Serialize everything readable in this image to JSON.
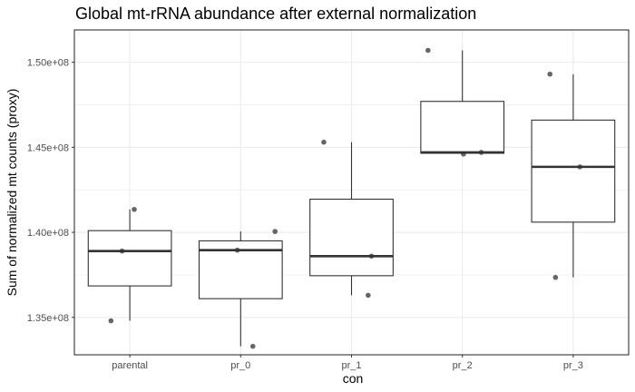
{
  "chart_data": {
    "type": "box",
    "title": "Global mt-rRNA abundance after external normalization",
    "xlabel": "con",
    "ylabel": "Sum of normalized mt counts (proxy)",
    "categories": [
      "parental",
      "pr_0",
      "pr_1",
      "pr_2",
      "pr_3"
    ],
    "ylim": [
      132800000,
      151900000
    ],
    "yticks": [
      135000000,
      140000000,
      145000000,
      150000000
    ],
    "ytick_labels": [
      "1.35e+08",
      "1.40e+08",
      "1.45e+08",
      "1.50e+08"
    ],
    "grid": true,
    "boxes": [
      {
        "category": "parental",
        "lower_whisker": 134800000,
        "q1": 136850000,
        "median": 138900000,
        "q3": 140100000,
        "upper_whisker": 141350000
      },
      {
        "category": "pr_0",
        "lower_whisker": 133300000,
        "q1": 136100000,
        "median": 138950000,
        "q3": 139500000,
        "upper_whisker": 140050000
      },
      {
        "category": "pr_1",
        "lower_whisker": 136300000,
        "q1": 137450000,
        "median": 138600000,
        "q3": 141950000,
        "upper_whisker": 145300000
      },
      {
        "category": "pr_2",
        "lower_whisker": 144600000,
        "q1": 144650000,
        "median": 144700000,
        "q3": 147700000,
        "upper_whisker": 150700000
      },
      {
        "category": "pr_3",
        "lower_whisker": 137350000,
        "q1": 140600000,
        "median": 143850000,
        "q3": 146600000,
        "upper_whisker": 149300000
      }
    ],
    "points": [
      {
        "category": "parental",
        "offset": -0.17,
        "y": 134800000
      },
      {
        "category": "parental",
        "offset": -0.07,
        "y": 138900000
      },
      {
        "category": "parental",
        "offset": 0.04,
        "y": 141350000
      },
      {
        "category": "pr_0",
        "offset": -0.03,
        "y": 138950000
      },
      {
        "category": "pr_0",
        "offset": 0.11,
        "y": 133300000
      },
      {
        "category": "pr_0",
        "offset": 0.31,
        "y": 140050000
      },
      {
        "category": "pr_1",
        "offset": -0.25,
        "y": 145300000
      },
      {
        "category": "pr_1",
        "offset": 0.15,
        "y": 136300000
      },
      {
        "category": "pr_1",
        "offset": 0.18,
        "y": 138600000
      },
      {
        "category": "pr_2",
        "offset": -0.31,
        "y": 150700000
      },
      {
        "category": "pr_2",
        "offset": 0.01,
        "y": 144600000
      },
      {
        "category": "pr_2",
        "offset": 0.17,
        "y": 144700000
      },
      {
        "category": "pr_3",
        "offset": -0.21,
        "y": 149300000
      },
      {
        "category": "pr_3",
        "offset": -0.16,
        "y": 137350000
      },
      {
        "category": "pr_3",
        "offset": 0.06,
        "y": 143850000
      }
    ],
    "colors": {
      "panel_background": "#ffffff",
      "grid": "#ebebeb",
      "panel_border": "#333333",
      "box_stroke": "#333333",
      "point": "#333333"
    }
  }
}
